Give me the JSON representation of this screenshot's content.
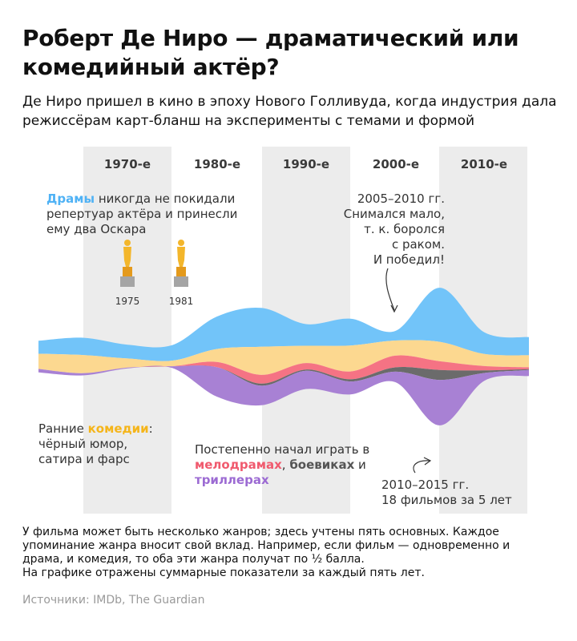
{
  "title": "Роберт Де Ниро —  драматический или комедийный актёр?",
  "subtitle": "Де Ниро пришел в кино в эпоху Нового Голливуда, когда индустрия дала режиссёрам карт-бланш на эксперименты с темами и формой",
  "footnote": {
    "line1": "У фильма может быть несколько жанров; здесь учтены пять основных. Каждое",
    "line2": "упоминание жанра вносит свой вклад. Например, если фильм — одновременно и",
    "line3": "драма, и комедия, то оба эти жанра получат по ½ балла.",
    "line4": "На графике отражены суммарные показатели за каждый пять лет."
  },
  "source": "Источники: IMDb, The Guardian",
  "colors": {
    "drama": "#72c4f9",
    "comedy": "#fcd890",
    "melodrama": "#f57384",
    "action": "#6b6b6b",
    "thriller": "#a881d4",
    "band": "#ececec",
    "oscar": "#f3b62b"
  },
  "chart_data": {
    "type": "area",
    "subtype": "streamgraph",
    "x": [
      1965,
      1970,
      1975,
      1980,
      1985,
      1990,
      1995,
      2000,
      2005,
      2010,
      2015,
      2020
    ],
    "decades": [
      "1970-е",
      "1980-е",
      "1990-е",
      "2000-е",
      "2010-е"
    ],
    "series": [
      {
        "name": "Драмы",
        "key": "drama",
        "values": [
          3.0,
          4.0,
          3.2,
          3.6,
          7.5,
          9.0,
          5.0,
          6.2,
          2.2,
          12.5,
          5.0,
          4.2
        ]
      },
      {
        "name": "комедии",
        "key": "comedy",
        "values": [
          3.5,
          4.2,
          2.1,
          1.3,
          3.0,
          6.5,
          4.0,
          6.0,
          3.5,
          4.5,
          2.8,
          2.8
        ]
      },
      {
        "name": "мелодрамах",
        "key": "melodrama",
        "values": [
          0.0,
          0.0,
          0.0,
          0.0,
          1.2,
          2.0,
          1.5,
          1.8,
          2.7,
          2.0,
          1.0,
          0.4
        ]
      },
      {
        "name": "боевиках",
        "key": "action",
        "values": [
          0.0,
          0.0,
          0.0,
          0.0,
          0.0,
          0.5,
          0.3,
          0.5,
          1.0,
          2.3,
          0.6,
          0.2
        ]
      },
      {
        "name": "триллерах",
        "key": "thriller",
        "values": [
          0.8,
          0.5,
          0.2,
          0.4,
          6.8,
          4.5,
          4.2,
          3.0,
          2.4,
          10.5,
          1.8,
          1.4
        ]
      }
    ],
    "annotations": {
      "drama_lead": "Драмы",
      "drama_rest_1": " никогда не покидали",
      "drama_rest_2": "репертуар актёра и принесли",
      "drama_rest_3": "ему два Оскара",
      "oscar_1": "1975",
      "oscar_2": "1981",
      "pause_1": "2005–2010 гг.",
      "pause_2": "Снимался мало,",
      "pause_3": "т. к. боролся",
      "pause_4": "с раком.",
      "pause_5": "И победил!",
      "comedy_1a": "Ранние ",
      "comedy_1b": "комедии",
      "comedy_1c": ":",
      "comedy_2": "чёрный юмор,",
      "comedy_3": "сатира и фарс",
      "genres_1": "Постепенно начал играть в",
      "genres_2a": "мелодрамах",
      "genres_2b": ", ",
      "genres_2c": "боевиках",
      "genres_2d": " и",
      "genres_3": "триллерах",
      "peak_1": "2010–2015  гг.",
      "peak_2": "18 фильмов за 5 лет"
    }
  }
}
